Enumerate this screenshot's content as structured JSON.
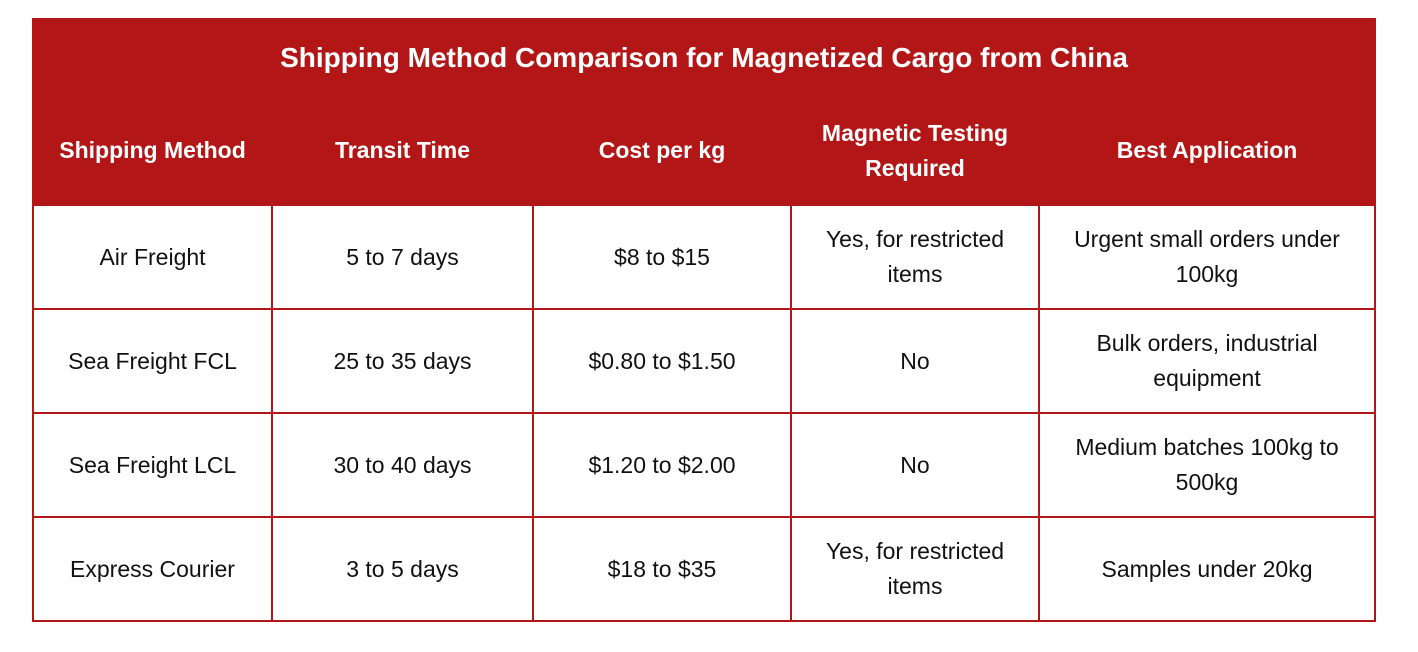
{
  "table": {
    "title": "Shipping Method Comparison for Magnetized Cargo from China",
    "columns": [
      "Shipping Method",
      "Transit Time",
      "Cost per kg",
      "Magnetic Testing Required",
      "Best Application"
    ],
    "rows": [
      [
        "Air Freight",
        "5 to 7 days",
        "$8 to $15",
        "Yes, for restricted items",
        "Urgent small orders under 100kg"
      ],
      [
        "Sea Freight FCL",
        "25 to 35 days",
        "$0.80 to $1.50",
        "No",
        "Bulk orders, industrial equipment"
      ],
      [
        "Sea Freight LCL",
        "30 to 40 days",
        "$1.20 to $2.00",
        "No",
        "Medium batches 100kg to 500kg"
      ],
      [
        "Express Courier",
        "3 to 5 days",
        "$18 to $35",
        "Yes, for restricted items",
        "Samples under 20kg"
      ]
    ]
  }
}
